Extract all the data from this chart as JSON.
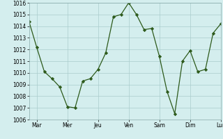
{
  "x": [
    0,
    1,
    2,
    3,
    4,
    5,
    6,
    7,
    8,
    9,
    10,
    11,
    12,
    13,
    14,
    15,
    16,
    17,
    18,
    19,
    20,
    21,
    22,
    23,
    24,
    25
  ],
  "y": [
    1014.4,
    1012.2,
    1010.1,
    1009.5,
    1008.8,
    1007.1,
    1007.0,
    1009.3,
    1009.5,
    1010.3,
    1011.7,
    1014.8,
    1015.0,
    1016.0,
    1015.0,
    1013.7,
    1013.8,
    1011.4,
    1008.4,
    1006.5,
    1011.0,
    1011.9,
    1010.1,
    1010.3,
    1013.4,
    1014.2
  ],
  "tick_labels": [
    "Mar",
    "Mer",
    "Jeu",
    "Ven",
    "Sam",
    "Dim",
    "Lun"
  ],
  "tick_positions": [
    1,
    5,
    9,
    13,
    17,
    21,
    25
  ],
  "ylim": [
    1006,
    1016
  ],
  "yticks": [
    1006,
    1007,
    1008,
    1009,
    1010,
    1011,
    1012,
    1013,
    1014,
    1015,
    1016
  ],
  "line_color": "#2d5a1b",
  "marker_color": "#2d5a1b",
  "bg_color": "#d4eeee",
  "grid_color": "#aacccc",
  "spine_color": "#88aaaa"
}
